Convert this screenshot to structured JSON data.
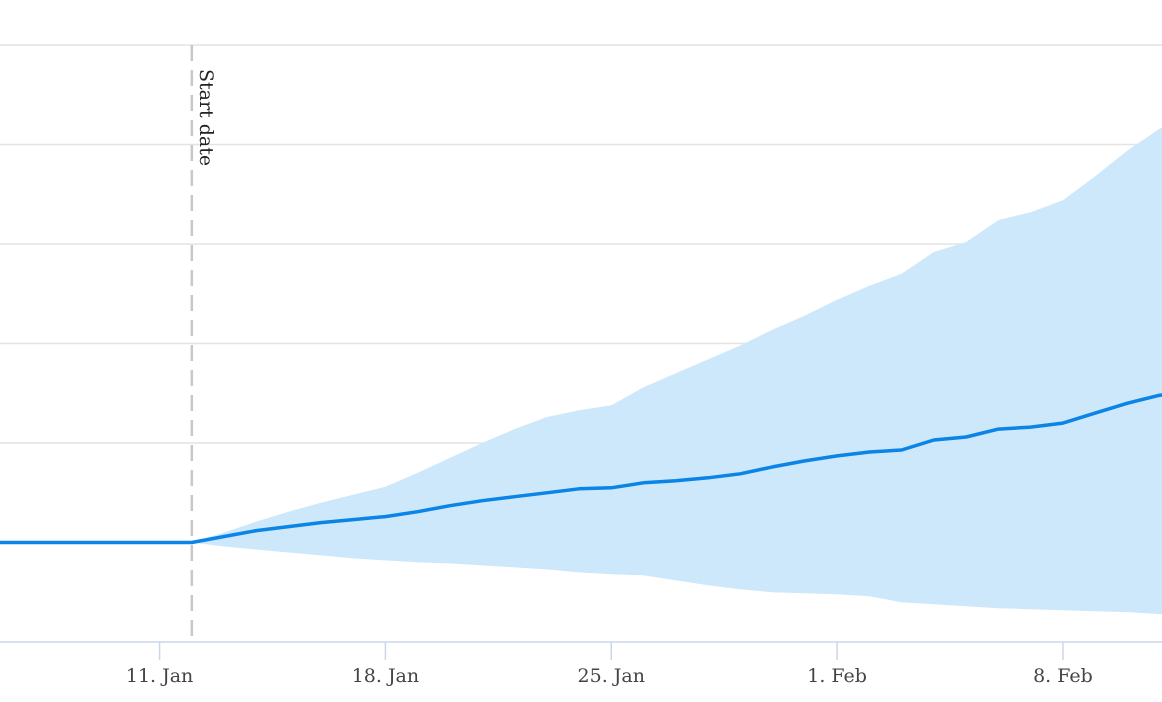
{
  "chart_data": {
    "type": "area",
    "title": "",
    "xlabel": "",
    "ylabel": "",
    "x_tick_labels": [
      "11. Jan",
      "18. Jan",
      "25. Jan",
      "1. Feb",
      "8. Feb"
    ],
    "x_tick_dates": [
      "2021-01-11",
      "2021-01-18",
      "2021-01-25",
      "2021-02-01",
      "2021-02-08"
    ],
    "x_range": [
      "2021-01-05",
      "2021-02-12"
    ],
    "y_range": [
      -1,
      5
    ],
    "y_gridlines": [
      -1,
      0,
      1,
      2,
      3,
      4,
      5
    ],
    "y_tick_labels_visible": false,
    "legend": "none",
    "colors": {
      "line": "#0a84e6",
      "band": "#cde7fb",
      "grid": "#e3e3e3",
      "axis": "#ccd6eb",
      "plot_line": "#c8c8c8"
    },
    "plot_line": {
      "label": "Start date",
      "x": "2021-01-12",
      "style": "dashed"
    },
    "series": [
      {
        "kind": "line",
        "points": [
          [
            "2021-01-05",
            0
          ],
          [
            "2021-01-06",
            0
          ],
          [
            "2021-01-07",
            0
          ],
          [
            "2021-01-08",
            0
          ],
          [
            "2021-01-09",
            0
          ],
          [
            "2021-01-10",
            0
          ],
          [
            "2021-01-11",
            0
          ],
          [
            "2021-01-12",
            0
          ],
          [
            "2021-01-13",
            0.06
          ],
          [
            "2021-01-14",
            0.12
          ],
          [
            "2021-01-15",
            0.16
          ],
          [
            "2021-01-16",
            0.2
          ],
          [
            "2021-01-17",
            0.23
          ],
          [
            "2021-01-18",
            0.26
          ],
          [
            "2021-01-19",
            0.31
          ],
          [
            "2021-01-20",
            0.37
          ],
          [
            "2021-01-21",
            0.42
          ],
          [
            "2021-01-22",
            0.46
          ],
          [
            "2021-01-23",
            0.5
          ],
          [
            "2021-01-24",
            0.54
          ],
          [
            "2021-01-25",
            0.55
          ],
          [
            "2021-01-26",
            0.6
          ],
          [
            "2021-01-27",
            0.62
          ],
          [
            "2021-01-28",
            0.65
          ],
          [
            "2021-01-29",
            0.69
          ],
          [
            "2021-01-30",
            0.76
          ],
          [
            "2021-01-31",
            0.82
          ],
          [
            "2021-02-01",
            0.87
          ],
          [
            "2021-02-02",
            0.91
          ],
          [
            "2021-02-03",
            0.93
          ],
          [
            "2021-02-04",
            1.03
          ],
          [
            "2021-02-05",
            1.06
          ],
          [
            "2021-02-06",
            1.14
          ],
          [
            "2021-02-07",
            1.16
          ],
          [
            "2021-02-08",
            1.2
          ],
          [
            "2021-02-09",
            1.3
          ],
          [
            "2021-02-10",
            1.4
          ],
          [
            "2021-02-11",
            1.48
          ],
          [
            "2021-02-12",
            1.51
          ]
        ]
      },
      {
        "kind": "range",
        "points": [
          [
            "2021-01-12",
            0,
            0
          ],
          [
            "2021-01-13",
            -0.04,
            0.1
          ],
          [
            "2021-01-14",
            -0.07,
            0.21
          ],
          [
            "2021-01-15",
            -0.1,
            0.31
          ],
          [
            "2021-01-16",
            -0.13,
            0.4
          ],
          [
            "2021-01-17",
            -0.16,
            0.48
          ],
          [
            "2021-01-18",
            -0.18,
            0.56
          ],
          [
            "2021-01-19",
            -0.2,
            0.7
          ],
          [
            "2021-01-20",
            -0.21,
            0.85
          ],
          [
            "2021-01-21",
            -0.23,
            1.0
          ],
          [
            "2021-01-22",
            -0.25,
            1.14
          ],
          [
            "2021-01-23",
            -0.27,
            1.26
          ],
          [
            "2021-01-24",
            -0.3,
            1.33
          ],
          [
            "2021-01-25",
            -0.32,
            1.38
          ],
          [
            "2021-01-26",
            -0.33,
            1.56
          ],
          [
            "2021-01-27",
            -0.38,
            1.7
          ],
          [
            "2021-01-28",
            -0.43,
            1.84
          ],
          [
            "2021-01-29",
            -0.47,
            1.98
          ],
          [
            "2021-01-30",
            -0.5,
            2.14
          ],
          [
            "2021-01-31",
            -0.51,
            2.28
          ],
          [
            "2021-02-01",
            -0.52,
            2.44
          ],
          [
            "2021-02-02",
            -0.54,
            2.58
          ],
          [
            "2021-02-03",
            -0.6,
            2.7
          ],
          [
            "2021-02-04",
            -0.62,
            2.92
          ],
          [
            "2021-02-05",
            -0.64,
            3.02
          ],
          [
            "2021-02-06",
            -0.66,
            3.24
          ],
          [
            "2021-02-07",
            -0.67,
            3.32
          ],
          [
            "2021-02-08",
            -0.68,
            3.44
          ],
          [
            "2021-02-09",
            -0.69,
            3.68
          ],
          [
            "2021-02-10",
            -0.7,
            3.94
          ],
          [
            "2021-02-11",
            -0.72,
            4.16
          ],
          [
            "2021-02-12",
            -0.74,
            4.27
          ]
        ]
      }
    ]
  }
}
